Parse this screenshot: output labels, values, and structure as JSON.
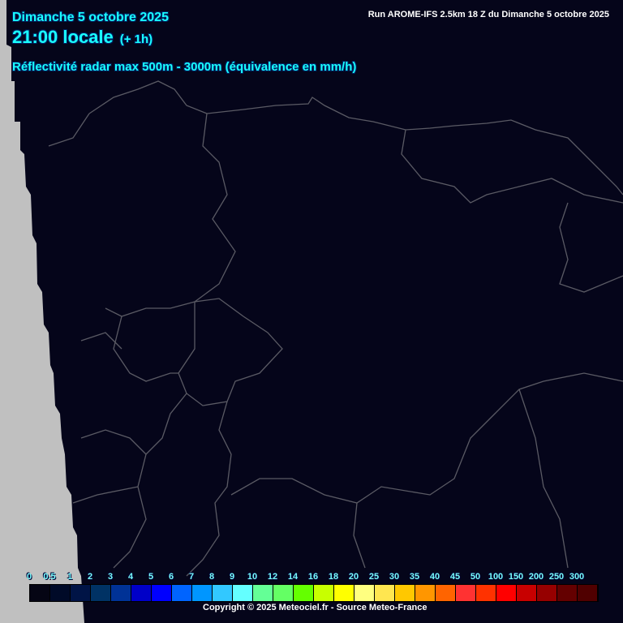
{
  "header": {
    "date": "Dimanche 5 octobre 2025",
    "time": "21:00 locale",
    "lead": "(+ 1h)",
    "product": "Réflectivité radar max 500m - 3000m (équivalence en mm/h)",
    "run": "Run AROME-IFS 2.5km 18 Z du Dimanche 5 octobre 2025"
  },
  "colors": {
    "background": "#05051a",
    "outside_domain": "#c0c0c0",
    "borders": "#5a5a64",
    "header_text": "#19ffff"
  },
  "legend": {
    "labels": [
      "0",
      "0.5",
      "1",
      "2",
      "3",
      "4",
      "5",
      "6",
      "7",
      "8",
      "9",
      "10",
      "12",
      "14",
      "16",
      "18",
      "20",
      "25",
      "30",
      "35",
      "40",
      "45",
      "50",
      "100",
      "150",
      "200",
      "250",
      "300"
    ],
    "colors": [
      "#050514",
      "#000a28",
      "#001446",
      "#003264",
      "#003296",
      "#0000c8",
      "#0000ff",
      "#0064ff",
      "#0096ff",
      "#32c8ff",
      "#64ffff",
      "#64ff96",
      "#64ff64",
      "#64ff00",
      "#c8ff00",
      "#ffff00",
      "#ffff80",
      "#ffe650",
      "#ffc800",
      "#ff9600",
      "#ff6400",
      "#ff3232",
      "#ff3200",
      "#ff0000",
      "#c80000",
      "#960000",
      "#640000",
      "#500000"
    ]
  },
  "footer": {
    "copyright": "Copyright © 2025 Meteociel.fr - Source Meteo-France"
  }
}
